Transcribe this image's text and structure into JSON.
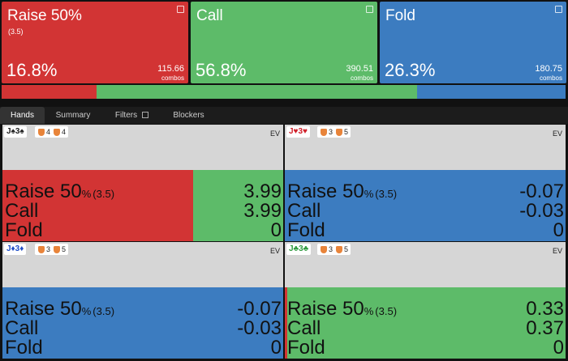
{
  "actions": [
    {
      "name": "Raise 50%",
      "size": "(3.5)",
      "frequency": {
        "value": 16.8,
        "label": "16.8%"
      },
      "combos": "115.66",
      "combos_label": "combos",
      "color": "#d23434"
    },
    {
      "name": "Call",
      "frequency": {
        "value": 56.8,
        "label": "56.8%"
      },
      "combos": "390.51",
      "combos_label": "combos",
      "color": "#5dbb69"
    },
    {
      "name": "Fold",
      "frequency": {
        "value": 26.3,
        "label": "26.3%"
      },
      "combos": "180.75",
      "combos_label": "combos",
      "color": "#3c7cc0"
    }
  ],
  "tabs": [
    "Hands",
    "Summary",
    "Filters",
    "Blockers"
  ],
  "hands": [
    {
      "cards": "J♠3♠",
      "suit_color": "#222222",
      "blockers": [
        "4",
        "4"
      ],
      "ev_label": "EV",
      "strategy": [
        68,
        32,
        0
      ],
      "rows": [
        {
          "action": "Raise 50",
          "unit": "%",
          "size": "(3.5)",
          "ev": "3.99"
        },
        {
          "action": "Call",
          "ev": "3.99"
        },
        {
          "action": "Fold",
          "ev": "0"
        }
      ]
    },
    {
      "cards": "J♥3♥",
      "suit_color": "#d0202a",
      "blockers": [
        "3",
        "5"
      ],
      "ev_label": "EV",
      "strategy": [
        0,
        0,
        100
      ],
      "rows": [
        {
          "action": "Raise 50",
          "unit": "%",
          "size": "(3.5)",
          "ev": "-0.07"
        },
        {
          "action": "Call",
          "ev": "-0.03"
        },
        {
          "action": "Fold",
          "ev": "0"
        }
      ]
    },
    {
      "cards": "J♦3♦",
      "suit_color": "#1f4fc8",
      "blockers": [
        "3",
        "5"
      ],
      "ev_label": "EV",
      "strategy": [
        0,
        0,
        100
      ],
      "rows": [
        {
          "action": "Raise 50",
          "unit": "%",
          "size": "(3.5)",
          "ev": "-0.07"
        },
        {
          "action": "Call",
          "ev": "-0.03"
        },
        {
          "action": "Fold",
          "ev": "0"
        }
      ]
    },
    {
      "cards": "J♣3♣",
      "suit_color": "#2e9a3e",
      "blockers": [
        "3",
        "5"
      ],
      "ev_label": "EV",
      "strategy": [
        1,
        99,
        0
      ],
      "rows": [
        {
          "action": "Raise 50",
          "unit": "%",
          "size": "(3.5)",
          "ev": "0.33"
        },
        {
          "action": "Call",
          "ev": "0.37"
        },
        {
          "action": "Fold",
          "ev": "0"
        }
      ]
    }
  ]
}
